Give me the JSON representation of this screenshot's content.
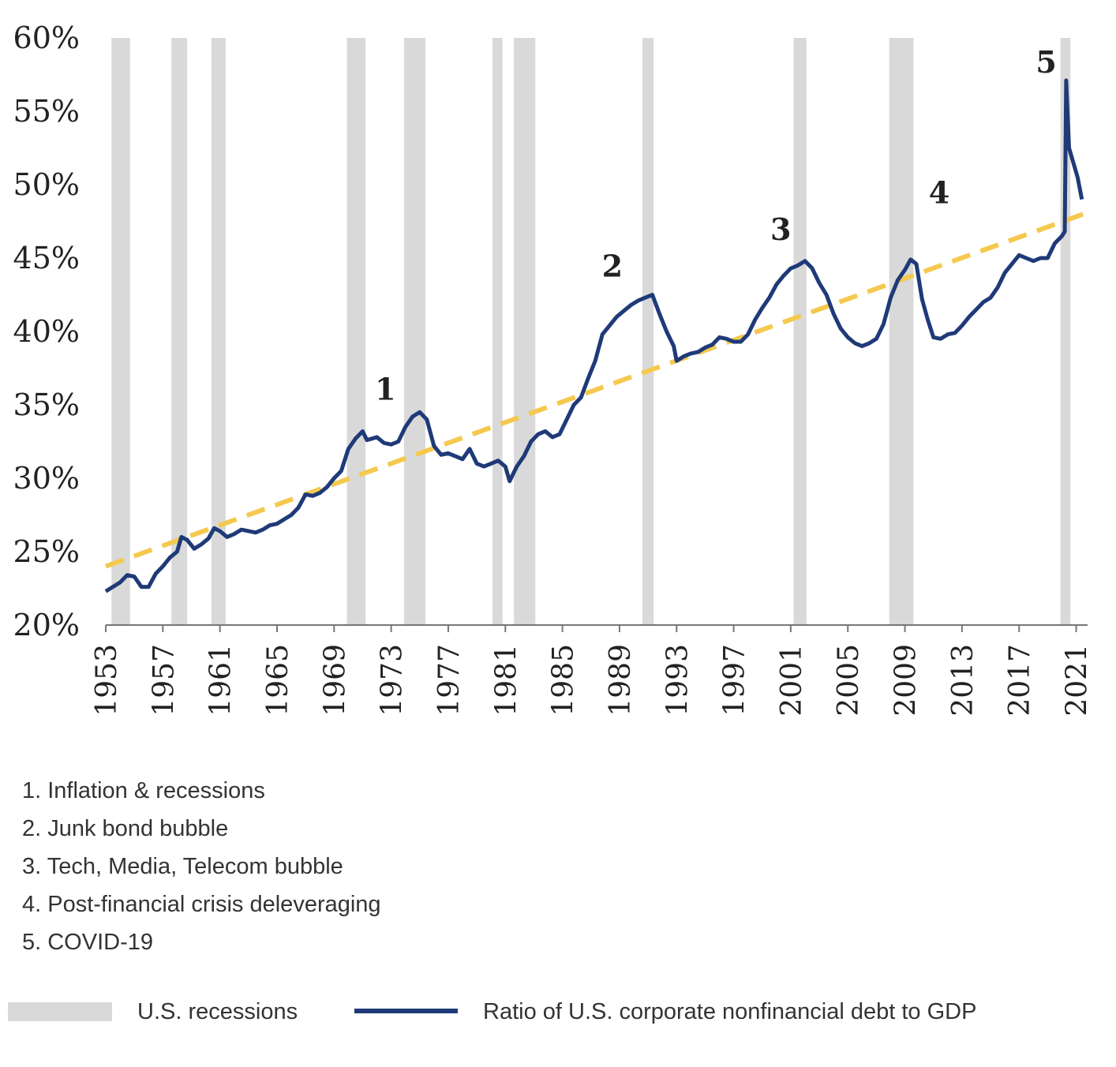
{
  "chart_data": {
    "type": "line",
    "xlim": [
      1953,
      2021.8
    ],
    "xticks": [
      1953,
      1957,
      1961,
      1965,
      1969,
      1973,
      1977,
      1981,
      1985,
      1989,
      1993,
      1997,
      2001,
      2005,
      2009,
      2013,
      2017,
      2021
    ],
    "ylim": [
      20,
      60
    ],
    "yticks": [
      {
        "value": 20,
        "label": "20%"
      },
      {
        "value": 25,
        "label": "25%"
      },
      {
        "value": 30,
        "label": "30%"
      },
      {
        "value": 35,
        "label": "35%"
      },
      {
        "value": 40,
        "label": "40%"
      },
      {
        "value": 45,
        "label": "45%"
      },
      {
        "value": 50,
        "label": "50%"
      },
      {
        "value": 55,
        "label": "55%"
      },
      {
        "value": 60,
        "label": "60%"
      }
    ],
    "recession_label": "U.S. recessions",
    "recession_color": "#d9d9d9",
    "recessions": [
      [
        1953.4,
        1954.7
      ],
      [
        1957.6,
        1958.7
      ],
      [
        1960.4,
        1961.4
      ],
      [
        1969.9,
        1971.2
      ],
      [
        1973.9,
        1975.4
      ],
      [
        1980.1,
        1980.8
      ],
      [
        1981.6,
        1983.1
      ],
      [
        1990.6,
        1991.4
      ],
      [
        2001.2,
        2002.1
      ],
      [
        2007.9,
        2009.6
      ],
      [
        2019.9,
        2020.6
      ]
    ],
    "series": [
      {
        "name": "Ratio of U.S. corporate nonfinancial debt to GDP",
        "color": "#1f3a78",
        "x": [
          1953.0,
          1954.0,
          1954.5,
          1955.0,
          1955.5,
          1956.0,
          1956.5,
          1957.0,
          1957.5,
          1958.0,
          1958.3,
          1958.7,
          1959.2,
          1959.7,
          1960.2,
          1960.6,
          1961.0,
          1961.5,
          1962.0,
          1962.5,
          1963.0,
          1963.5,
          1964.0,
          1964.5,
          1965.0,
          1966.0,
          1966.5,
          1967.0,
          1967.5,
          1968.0,
          1968.5,
          1969.0,
          1969.5,
          1970.0,
          1970.5,
          1971.0,
          1971.3,
          1972.0,
          1972.5,
          1973.0,
          1973.5,
          1974.0,
          1974.5,
          1975.0,
          1975.5,
          1976.0,
          1976.5,
          1977.0,
          1977.5,
          1978.0,
          1978.5,
          1979.0,
          1979.5,
          1980.0,
          1980.5,
          1981.0,
          1981.3,
          1981.8,
          1982.3,
          1982.8,
          1983.3,
          1983.8,
          1984.3,
          1984.8,
          1985.3,
          1985.8,
          1986.3,
          1986.8,
          1987.3,
          1987.8,
          1988.3,
          1988.8,
          1989.3,
          1989.8,
          1990.3,
          1990.8,
          1991.3,
          1991.8,
          1992.3,
          1992.8,
          1993.0,
          1993.5,
          1994.0,
          1994.5,
          1995.0,
          1995.5,
          1996.0,
          1996.5,
          1997.0,
          1997.5,
          1998.0,
          1998.5,
          1999.0,
          1999.5,
          2000.0,
          2000.5,
          2001.0,
          2001.5,
          2002.0,
          2002.5,
          2003.0,
          2003.5,
          2004.0,
          2004.5,
          2005.0,
          2005.5,
          2006.0,
          2006.5,
          2007.0,
          2007.5,
          2008.0,
          2008.5,
          2009.0,
          2009.4,
          2009.8,
          2010.2,
          2010.6,
          2011.0,
          2011.5,
          2012.0,
          2012.5,
          2013.0,
          2013.5,
          2014.0,
          2014.5,
          2015.0,
          2015.5,
          2016.0,
          2016.5,
          2017.0,
          2017.5,
          2018.0,
          2018.5,
          2019.0,
          2019.5,
          2020.0,
          2020.2,
          2020.3,
          2020.5,
          2020.8,
          2021.1,
          2021.4
        ],
        "values": [
          22.3,
          22.9,
          23.4,
          23.3,
          22.6,
          22.6,
          23.5,
          24.0,
          24.6,
          25.0,
          26.0,
          25.8,
          25.2,
          25.5,
          25.9,
          26.6,
          26.4,
          26.0,
          26.2,
          26.5,
          26.4,
          26.3,
          26.5,
          26.8,
          26.9,
          27.5,
          28.0,
          28.9,
          28.8,
          29.0,
          29.4,
          30.0,
          30.5,
          32.0,
          32.7,
          33.2,
          32.6,
          32.8,
          32.4,
          32.3,
          32.5,
          33.5,
          34.2,
          34.5,
          34.0,
          32.2,
          31.6,
          31.7,
          31.5,
          31.3,
          32.0,
          31.0,
          30.8,
          31.0,
          31.2,
          30.8,
          29.8,
          30.8,
          31.5,
          32.5,
          33.0,
          33.2,
          32.8,
          33.0,
          34.0,
          35.0,
          35.5,
          36.8,
          38.0,
          39.8,
          40.4,
          41.0,
          41.4,
          41.8,
          42.1,
          42.3,
          42.5,
          41.2,
          40.0,
          39.0,
          38.0,
          38.3,
          38.5,
          38.6,
          38.9,
          39.1,
          39.6,
          39.5,
          39.3,
          39.3,
          39.8,
          40.8,
          41.6,
          42.3,
          43.2,
          43.8,
          44.3,
          44.5,
          44.8,
          44.3,
          43.3,
          42.5,
          41.2,
          40.2,
          39.6,
          39.2,
          39.0,
          39.2,
          39.5,
          40.5,
          42.3,
          43.5,
          44.2,
          44.9,
          44.6,
          42.2,
          40.8,
          39.6,
          39.5,
          39.8,
          39.9,
          40.4,
          41.0,
          41.5,
          42.0,
          42.3,
          43.0,
          44.0,
          44.6,
          45.2,
          45.0,
          44.8,
          45.0,
          45.0,
          46.0,
          46.5,
          46.8,
          57.1,
          52.5,
          51.5,
          50.5,
          49.0
        ]
      }
    ],
    "trend": {
      "color": "#f5c94e",
      "x": [
        1953,
        2021.8
      ],
      "values": [
        24.0,
        48.1
      ]
    },
    "annotations": [
      {
        "text": "1",
        "x": 1972.6,
        "y": 36.1
      },
      {
        "text": "2",
        "x": 1988.5,
        "y": 44.5
      },
      {
        "text": "3",
        "x": 2000.3,
        "y": 47.0
      },
      {
        "text": "4",
        "x": 2011.4,
        "y": 49.5
      },
      {
        "text": "5",
        "x": 2018.9,
        "y": 58.4
      }
    ],
    "notes": [
      "1. Inflation & recessions",
      "2. Junk bond bubble",
      "3. Tech, Media, Telecom bubble",
      "4. Post-financial crisis deleveraging",
      "5. COVID-19"
    ]
  }
}
